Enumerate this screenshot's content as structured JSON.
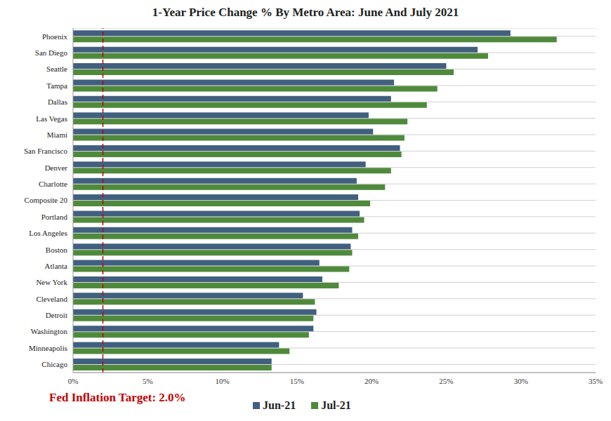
{
  "chart_data": {
    "type": "bar",
    "title": "1-Year Price Change % By Metro Area: June And July 2021",
    "orientation": "horizontal",
    "categories": [
      "Phoenix",
      "San Diego",
      "Seattle",
      "Tampa",
      "Dallas",
      "Las Vegas",
      "Miami",
      "San Francisco",
      "Denver",
      "Charlotte",
      "Composite 20",
      "Portland",
      "Los Angeles",
      "Boston",
      "Atlanta",
      "New York",
      "Cleveland",
      "Detroit",
      "Washington",
      "Minneapolis",
      "Chicago"
    ],
    "series": [
      {
        "name": "Jun-21",
        "color": "#41607f",
        "values": [
          29.3,
          27.1,
          25.0,
          21.5,
          21.3,
          19.8,
          20.1,
          21.9,
          19.6,
          19.0,
          19.1,
          19.2,
          18.7,
          18.6,
          16.5,
          16.7,
          15.4,
          16.3,
          16.1,
          13.8,
          13.3
        ]
      },
      {
        "name": "Jul-21",
        "color": "#4f8a3c",
        "values": [
          32.4,
          27.8,
          25.5,
          24.4,
          23.7,
          22.4,
          22.2,
          22.0,
          21.3,
          20.9,
          19.9,
          19.5,
          19.1,
          18.7,
          18.5,
          17.8,
          16.2,
          16.1,
          15.8,
          14.5,
          13.3
        ]
      }
    ],
    "xlim": [
      0,
      35
    ],
    "xticks": [
      {
        "value": 0,
        "label": "0%"
      },
      {
        "value": 5,
        "label": "5%"
      },
      {
        "value": 10,
        "label": "10%"
      },
      {
        "value": 15,
        "label": "15%"
      },
      {
        "value": 20,
        "label": "20%"
      },
      {
        "value": 25,
        "label": "25%"
      },
      {
        "value": 30,
        "label": "30%"
      },
      {
        "value": 35,
        "label": "35%"
      }
    ],
    "grid": true,
    "legend": "bottom",
    "annotations": [
      {
        "text": "Fed Inflation Target: 2.0%",
        "x": 2.0,
        "color": "#c00000",
        "line_style": "dashed"
      }
    ]
  }
}
